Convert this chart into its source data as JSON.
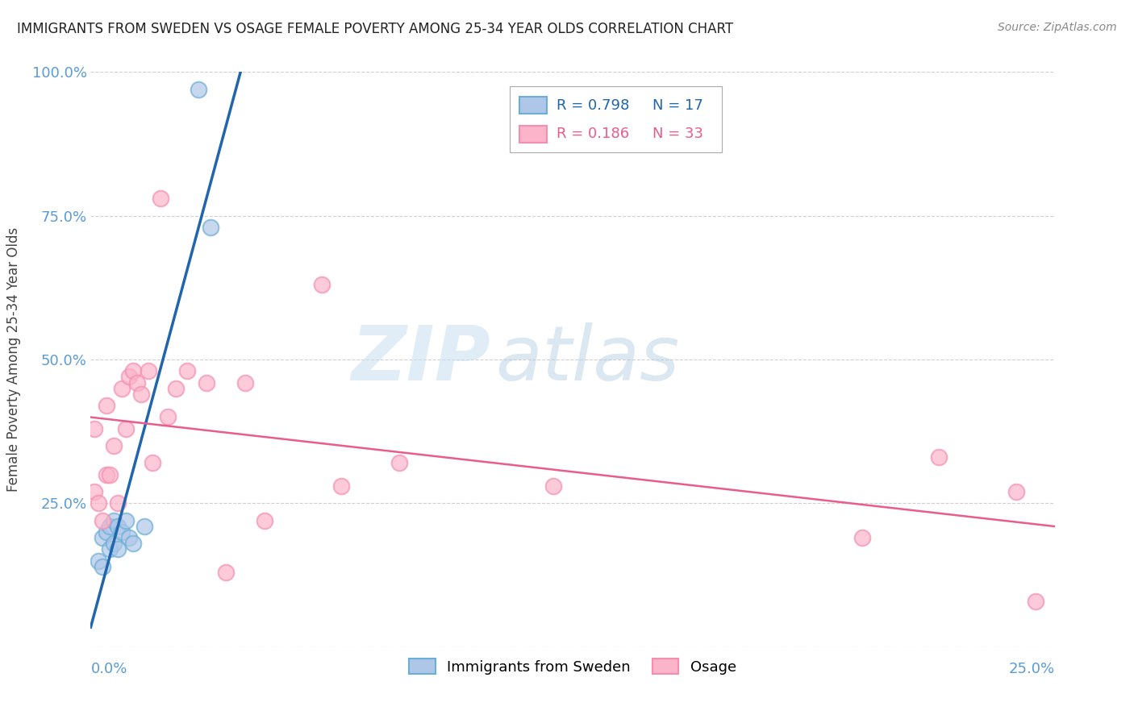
{
  "title": "IMMIGRANTS FROM SWEDEN VS OSAGE FEMALE POVERTY AMONG 25-34 YEAR OLDS CORRELATION CHART",
  "source": "Source: ZipAtlas.com",
  "ylabel": "Female Poverty Among 25-34 Year Olds",
  "xlim": [
    0.0,
    0.25
  ],
  "ylim": [
    0.0,
    1.0
  ],
  "yticks": [
    0.0,
    0.25,
    0.5,
    0.75,
    1.0
  ],
  "ytick_labels": [
    "",
    "25.0%",
    "50.0%",
    "75.0%",
    "100.0%"
  ],
  "legend_r1": "R = 0.798",
  "legend_n1": "N = 17",
  "legend_r2": "R = 0.186",
  "legend_n2": "N = 33",
  "legend_label1": "Immigrants from Sweden",
  "legend_label2": "Osage",
  "color_blue_face": "#aec7e8",
  "color_blue_edge": "#6baed6",
  "color_pink_face": "#fbb4c9",
  "color_pink_edge": "#f48fb1",
  "color_blue_line": "#2166ac",
  "color_pink_line": "#e85d8a",
  "watermark_zip": "ZIP",
  "watermark_atlas": "atlas",
  "grid_color": "#d0d0d0",
  "tick_color": "#5b9bd5",
  "sweden_x": [
    0.002,
    0.003,
    0.003,
    0.004,
    0.005,
    0.005,
    0.006,
    0.006,
    0.007,
    0.007,
    0.008,
    0.009,
    0.01,
    0.011,
    0.014,
    0.028,
    0.031
  ],
  "sweden_y": [
    0.15,
    0.14,
    0.19,
    0.2,
    0.17,
    0.21,
    0.18,
    0.22,
    0.17,
    0.21,
    0.2,
    0.22,
    0.19,
    0.18,
    0.21,
    0.97,
    0.73
  ],
  "osage_x": [
    0.001,
    0.001,
    0.002,
    0.003,
    0.004,
    0.004,
    0.005,
    0.006,
    0.007,
    0.008,
    0.009,
    0.01,
    0.011,
    0.012,
    0.013,
    0.015,
    0.016,
    0.018,
    0.02,
    0.022,
    0.025,
    0.03,
    0.035,
    0.04,
    0.045,
    0.06,
    0.065,
    0.08,
    0.12,
    0.2,
    0.22,
    0.24,
    0.245
  ],
  "osage_y": [
    0.27,
    0.38,
    0.25,
    0.22,
    0.3,
    0.42,
    0.3,
    0.35,
    0.25,
    0.45,
    0.38,
    0.47,
    0.48,
    0.46,
    0.44,
    0.48,
    0.32,
    0.78,
    0.4,
    0.45,
    0.48,
    0.46,
    0.13,
    0.46,
    0.22,
    0.63,
    0.28,
    0.32,
    0.28,
    0.19,
    0.33,
    0.27,
    0.08
  ]
}
